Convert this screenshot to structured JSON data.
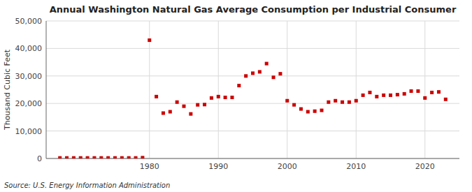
{
  "chart_data": {
    "type": "scatter",
    "title": "Annual Washington Natural Gas Average Consumption per Industrial Consumer",
    "ylabel": "Thousand Cubic Feet",
    "annotations": [
      "Source: U.S. Energy Information Administration"
    ],
    "x": [
      1967,
      1968,
      1969,
      1970,
      1971,
      1972,
      1973,
      1974,
      1975,
      1976,
      1977,
      1978,
      1979,
      1980,
      1981,
      1982,
      1983,
      1984,
      1985,
      1986,
      1987,
      1988,
      1989,
      1990,
      1991,
      1992,
      1993,
      1994,
      1995,
      1996,
      1997,
      1998,
      1999,
      2000,
      2001,
      2002,
      2003,
      2004,
      2005,
      2006,
      2007,
      2008,
      2009,
      2010,
      2011,
      2012,
      2013,
      2014,
      2015,
      2016,
      2017,
      2018,
      2019,
      2020,
      2021,
      2022,
      2023
    ],
    "values": [
      200,
      200,
      200,
      200,
      200,
      200,
      200,
      200,
      200,
      200,
      200,
      200,
      300,
      43000,
      22500,
      16500,
      17000,
      20500,
      19000,
      16200,
      19500,
      19600,
      22000,
      22500,
      22200,
      22200,
      26500,
      30000,
      31000,
      31500,
      34500,
      29500,
      30800,
      21000,
      19500,
      18000,
      17000,
      17200,
      17500,
      20500,
      21000,
      20500,
      20500,
      21000,
      23000,
      24000,
      22500,
      23000,
      23000,
      23200,
      23500,
      24500,
      24500,
      22000,
      24000,
      24200,
      21500
    ],
    "color": "#cc0000",
    "marker": "square",
    "xlim": [
      1965,
      2025
    ],
    "xticks": [
      1980,
      1990,
      2000,
      2010,
      2020
    ],
    "ylim": [
      0,
      50000
    ],
    "yticks": [
      0,
      {
        "value": 10000,
        "label": "10,000"
      },
      {
        "value": 20000,
        "label": "20,000"
      },
      {
        "value": 30000,
        "label": "30,000"
      },
      {
        "value": 40000,
        "label": "40,000"
      },
      {
        "value": 50000,
        "label": "50,000"
      }
    ],
    "grid": true
  }
}
